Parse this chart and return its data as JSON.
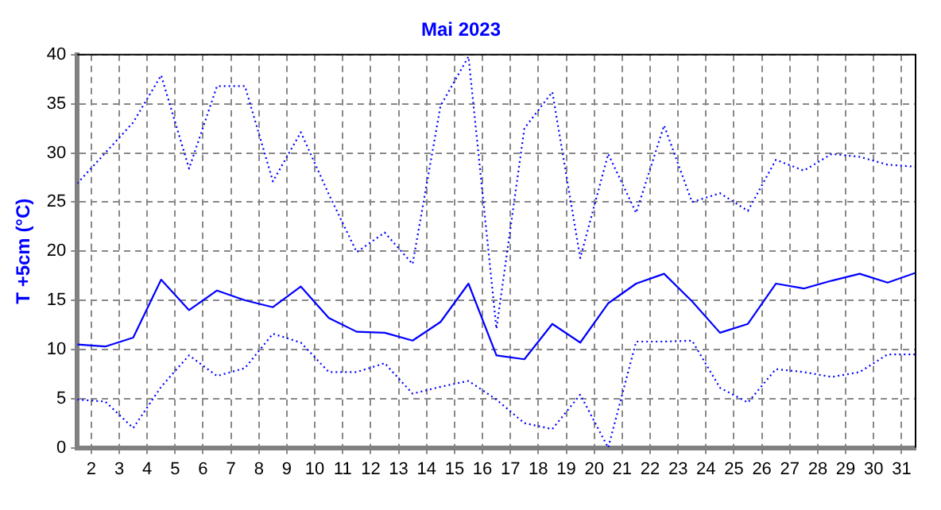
{
  "chart_data": {
    "type": "line",
    "title": "Mai 2023",
    "ylabel": "T +5cm (°C)",
    "x": [
      1.5,
      2.5,
      3.5,
      4.5,
      5.5,
      6.5,
      7.5,
      8.5,
      9.5,
      10.5,
      11.5,
      12.5,
      13.5,
      14.5,
      15.5,
      16.5,
      17.5,
      18.5,
      19.5,
      20.5,
      21.5,
      22.5,
      23.5,
      24.5,
      25.5,
      26.5,
      27.5,
      28.5,
      29.5,
      30.5,
      31.5
    ],
    "xlim": [
      1.5,
      31.5
    ],
    "xticks": [
      2,
      3,
      4,
      5,
      6,
      7,
      8,
      9,
      10,
      11,
      12,
      13,
      14,
      15,
      16,
      17,
      18,
      19,
      20,
      21,
      22,
      23,
      24,
      25,
      26,
      27,
      28,
      29,
      30,
      31
    ],
    "ylim": [
      0,
      40
    ],
    "yticks": [
      0,
      5,
      10,
      15,
      20,
      25,
      30,
      35,
      40
    ],
    "grid": true,
    "legend": false,
    "marker": "none",
    "series": [
      {
        "color": "#0000ff",
        "line_style": "dotted",
        "values": [
          26.9,
          30.0,
          33.1,
          37.9,
          28.4,
          36.8,
          36.8,
          27.1,
          32.1,
          25.8,
          19.9,
          21.9,
          18.7,
          34.8,
          39.8,
          12.1,
          32.5,
          36.2,
          19.3,
          29.9,
          23.9,
          32.8,
          25.0,
          25.9,
          24.1,
          29.3,
          28.2,
          29.9,
          29.6,
          28.8,
          28.6
        ]
      },
      {
        "color": "#0000ff",
        "line_style": "solid",
        "values": [
          10.5,
          10.3,
          11.2,
          17.1,
          14.0,
          16.0,
          15.0,
          14.3,
          16.4,
          13.2,
          11.8,
          11.7,
          10.9,
          12.8,
          16.7,
          9.4,
          9.0,
          12.6,
          10.7,
          14.7,
          16.7,
          17.7,
          14.9,
          11.7,
          12.6,
          16.7,
          16.2,
          17.0,
          17.7,
          16.8,
          17.8
        ]
      },
      {
        "color": "#0000ff",
        "line_style": "dotted",
        "values": [
          4.9,
          4.7,
          2.0,
          6.2,
          9.4,
          7.3,
          8.1,
          11.6,
          10.7,
          7.7,
          7.7,
          8.6,
          5.5,
          6.2,
          6.8,
          4.9,
          2.5,
          1.9,
          5.4,
          0,
          10.8,
          10.8,
          10.9,
          6.1,
          4.6,
          8.0,
          7.7,
          7.2,
          7.7,
          9.5,
          9.5
        ]
      }
    ]
  }
}
